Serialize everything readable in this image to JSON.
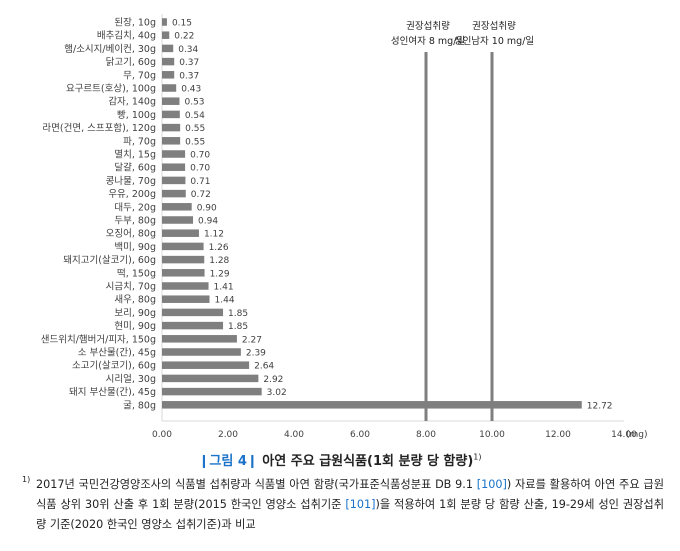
{
  "chart_data": {
    "type": "bar",
    "orientation": "horizontal",
    "unit": "(mg)",
    "xlim": [
      0,
      14
    ],
    "xticks": [
      "0.00",
      "2.00",
      "4.00",
      "6.00",
      "8.00",
      "10.00",
      "12.00",
      "14.00"
    ],
    "categories": [
      "된장, 10g",
      "배추김치, 40g",
      "햄/소시지/베이컨, 30g",
      "닭고기, 60g",
      "무, 70g",
      "요구르트(호상), 100g",
      "감자, 140g",
      "빵, 100g",
      "라면(건면, 스프포함), 120g",
      "파, 70g",
      "멸치, 15g",
      "달걀, 60g",
      "콩나물, 70g",
      "우유, 200g",
      "대두, 20g",
      "두부, 80g",
      "오징어, 80g",
      "백미, 90g",
      "돼지고기(살코기), 60g",
      "떡, 150g",
      "시금치, 70g",
      "새우, 80g",
      "보리, 90g",
      "현미, 90g",
      "샌드위치/햄버거/피자, 150g",
      "소 부산물(간), 45g",
      "소고기(살코기), 60g",
      "시리얼, 30g",
      "돼지 부산물(간), 45g",
      "굴, 80g"
    ],
    "values": [
      0.15,
      0.22,
      0.34,
      0.37,
      0.37,
      0.43,
      0.53,
      0.54,
      0.55,
      0.55,
      0.7,
      0.7,
      0.71,
      0.72,
      0.9,
      0.94,
      1.12,
      1.26,
      1.28,
      1.29,
      1.41,
      1.44,
      1.85,
      1.85,
      2.27,
      2.39,
      2.64,
      2.92,
      3.02,
      12.72
    ],
    "value_labels": [
      "0.15",
      "0.22",
      "0.34",
      "0.37",
      "0.37",
      "0.43",
      "0.53",
      "0.54",
      "0.55",
      "0.55",
      "0.70",
      "0.70",
      "0.71",
      "0.72",
      "0.90",
      "0.94",
      "1.12",
      "1.26",
      "1.28",
      "1.29",
      "1.41",
      "1.44",
      "1.85",
      "1.85",
      "2.27",
      "2.39",
      "2.64",
      "2.92",
      "3.02",
      "12.72"
    ],
    "reference_lines": [
      {
        "value": 8,
        "label1": "권장섭취량",
        "label2": "성인여자 8 mg/일"
      },
      {
        "value": 10,
        "label1": "권장섭취량",
        "label2": "성인남자 10 mg/일"
      }
    ],
    "colors": {
      "bar": "#7f7f7f",
      "ref_line": "#7f7f7f",
      "axis": "#d9d9d9"
    }
  },
  "figure": {
    "label": "❙그림 4❙",
    "title": "아연 주요 급원식품(1회 분량 당 함량)",
    "title_sup": "1)"
  },
  "footnote": {
    "marker": "1)",
    "part1": "2017년 국민건강영양조사의 식품별 섭취량과 식품별 아연 함량(국가표준식품성분표 DB 9.1 ",
    "ref1": "[100]",
    "part2": ") 자료를 활용하여 아연 주요 급원식품 상위 30위 산출 후 1회 분량(2015 한국인 영양소 섭취기준 ",
    "ref2": "[101]",
    "part3": ")을 적용하여 1회 분량 당 함량 산출, 19-29세 성인 권장섭취량 기준(2020 한국인 영양소 섭취기준)과 비교"
  }
}
